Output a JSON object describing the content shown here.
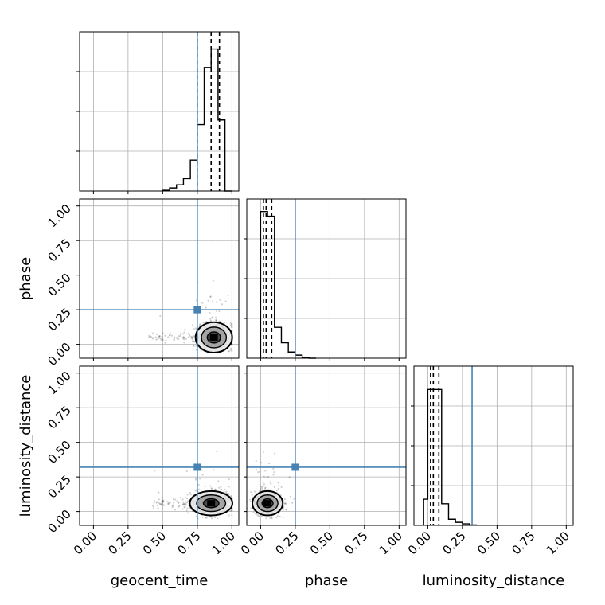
{
  "chart_data": {
    "type": "corner",
    "parameters": [
      "geocent_time",
      "phase",
      "luminosity_distance"
    ],
    "tick_labels": [
      "0.00",
      "0.25",
      "0.50",
      "0.75",
      "1.00"
    ],
    "range": [
      -0.1,
      1.05
    ],
    "grid": true,
    "truth_color": "#4682b4",
    "truths": {
      "geocent_time": 0.75,
      "phase": 0.25,
      "luminosity_distance": 0.32
    },
    "histograms": {
      "geocent_time": {
        "edges": [
          0.5,
          0.55,
          0.6,
          0.65,
          0.7,
          0.75,
          0.8,
          0.85,
          0.9,
          0.95,
          1.0
        ],
        "counts": [
          0.005,
          0.02,
          0.04,
          0.08,
          0.2,
          0.43,
          0.8,
          0.92,
          0.46,
          0.0
        ],
        "quantiles": [
          0.75,
          0.85,
          0.91
        ]
      },
      "phase": {
        "edges": [
          0.0,
          0.05,
          0.1,
          0.15,
          0.2,
          0.25,
          0.3,
          0.35,
          0.4
        ],
        "counts": [
          0.95,
          0.92,
          0.2,
          0.1,
          0.04,
          0.02,
          0.005,
          0.0
        ],
        "quantiles": [
          0.02,
          0.04,
          0.08
        ]
      },
      "luminosity_distance": {
        "edges": [
          -0.03,
          0.0,
          0.05,
          0.1,
          0.15,
          0.2,
          0.25,
          0.3,
          0.35
        ],
        "counts": [
          0.17,
          0.88,
          0.88,
          0.14,
          0.04,
          0.02,
          0.01,
          0.003
        ],
        "quantiles": [
          0.02,
          0.04,
          0.08
        ]
      }
    },
    "scatter_2d": {
      "phase_vs_geocent_time": {
        "center": [
          0.87,
          0.05
        ],
        "spread": [
          0.06,
          0.05
        ],
        "tail_x_min": 0.4
      },
      "luminosity_distance_vs_geocent_time": {
        "center": [
          0.85,
          0.06
        ],
        "spread": [
          0.07,
          0.04
        ],
        "tail_x_min": 0.4
      },
      "luminosity_distance_vs_phase": {
        "center": [
          0.05,
          0.06
        ],
        "spread": [
          0.05,
          0.04
        ],
        "tail_x_min": -0.05
      }
    }
  }
}
